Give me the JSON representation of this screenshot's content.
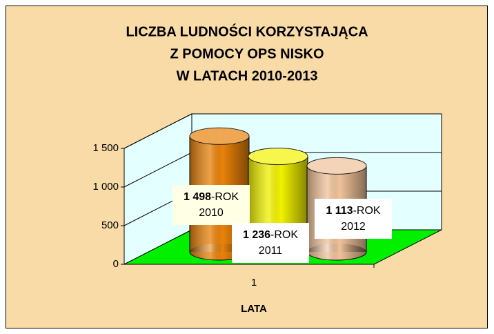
{
  "chart_data": {
    "type": "cylinder",
    "title": [
      "LICZBA LUDNOŚCI KORZYSTAJĄCA",
      "Z POMOCY  OPS NISKO",
      "W LATACH   2010-2013"
    ],
    "categories": [
      "1"
    ],
    "x_label": "LATA",
    "label_separator": "-",
    "series": [
      {
        "name": "ROK 2010",
        "color": "#e8820a",
        "values": [
          1498
        ],
        "value_labels": [
          "1 498"
        ]
      },
      {
        "name": "ROK 2011",
        "color": "#f2f200",
        "values": [
          1236
        ],
        "value_labels": [
          "1 236"
        ]
      },
      {
        "name": "ROK 2012",
        "color": "#f0c29a",
        "values": [
          1113
        ],
        "value_labels": [
          "1 113"
        ]
      }
    ],
    "ylim": [
      0,
      1500
    ],
    "yticks": [
      0,
      500,
      {
        "value": 1000,
        "label": "1 000"
      },
      {
        "value": 1500,
        "label": "1 500"
      }
    ],
    "grid": true,
    "wall_color": "#e4ffff",
    "floor_color": "#00f000",
    "background": "#f8dba6"
  }
}
